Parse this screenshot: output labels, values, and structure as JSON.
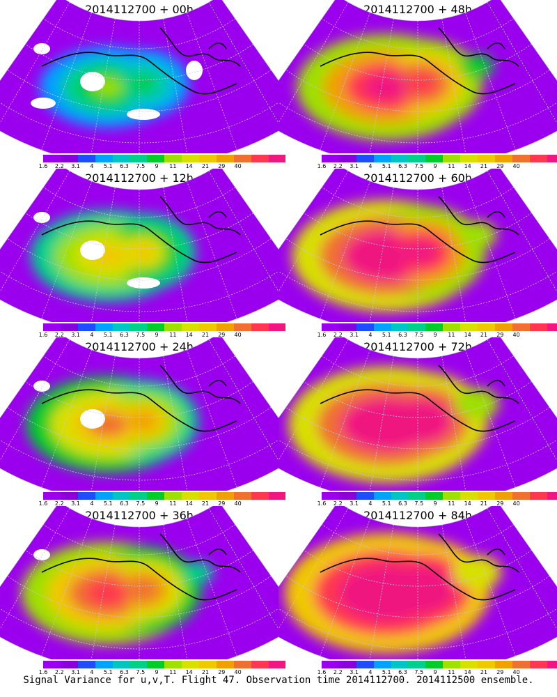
{
  "figure": {
    "footer": "Signal Variance for u,v,T. Flight 47. Observation time 2014112700. 2014112500 ensemble."
  },
  "colorbar": {
    "colors": [
      "#9a00ee",
      "#8a00dd",
      "#1e4dff",
      "#00a2ff",
      "#00c5c5",
      "#00d08a",
      "#00cc2a",
      "#9ee000",
      "#d8e000",
      "#f0c800",
      "#f0a000",
      "#f07030",
      "#ff3850",
      "#f01880"
    ],
    "labels": [
      "1.6",
      "2.2",
      "3.1",
      "4",
      "5.1",
      "6.3",
      "7.5",
      "9",
      "11",
      "14",
      "21",
      "29",
      "40"
    ]
  },
  "panels": [
    {
      "title": "2014112700 + 00h",
      "level": 0.15
    },
    {
      "title": "2014112700 + 48h",
      "level": 0.62
    },
    {
      "title": "2014112700 + 12h",
      "level": 0.35
    },
    {
      "title": "2014112700 + 60h",
      "level": 0.72
    },
    {
      "title": "2014112700 + 24h",
      "level": 0.45
    },
    {
      "title": "2014112700 + 72h",
      "level": 0.8
    },
    {
      "title": "2014112700 + 36h",
      "level": 0.55
    },
    {
      "title": "2014112700 + 84h",
      "level": 0.88
    }
  ]
}
